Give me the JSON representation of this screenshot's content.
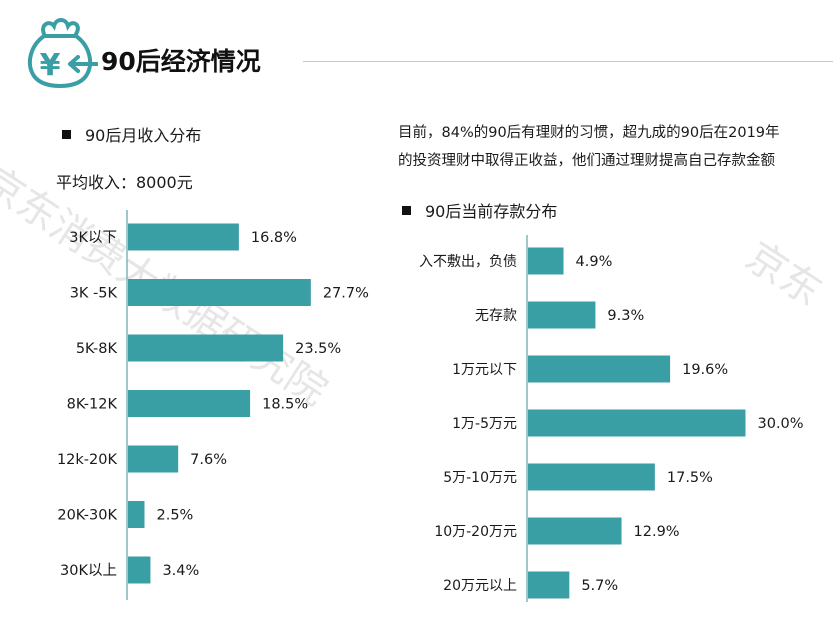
{
  "header": {
    "title": "90后经济情况",
    "logo_glyph": "¥",
    "icon": "money-bag-icon",
    "accent_color": "#3a9ea5"
  },
  "watermark": {
    "text": "京东消费大数据研究院",
    "fragment": "京东"
  },
  "summary": {
    "line1": "目前，84%的90后有理财的习惯，超九成的90后在2019年",
    "line2": "的投资理财中取得正收益，他们通过理财提高自己存款金额"
  },
  "chart_data": [
    {
      "type": "bar",
      "orientation": "horizontal",
      "title": "90后月收入分布",
      "subtitle": "平均收入：8000元",
      "categories": [
        "3K以下",
        "3K -5K",
        "5K-8K",
        "8K-12K",
        "12k-20K",
        "20K-30K",
        "30K以上"
      ],
      "values": [
        16.8,
        27.7,
        23.5,
        18.5,
        7.6,
        2.5,
        3.4
      ],
      "labels": [
        "16.8%",
        "27.7%",
        "23.5%",
        "18.5%",
        "7.6%",
        "2.5%",
        "3.4%"
      ],
      "unit": "%",
      "bar_color": "#3a9ea5",
      "grid": false
    },
    {
      "type": "bar",
      "orientation": "horizontal",
      "title": "90后当前存款分布",
      "categories": [
        "入不敷出，负债",
        "无存款",
        "1万元以下",
        "1万-5万元",
        "5万-10万元",
        "10万-20万元",
        "20万元以上"
      ],
      "values": [
        4.9,
        9.3,
        19.6,
        30.0,
        17.5,
        12.9,
        5.7
      ],
      "labels": [
        "4.9%",
        "9.3%",
        "19.6%",
        "30.0%",
        "17.5%",
        "12.9%",
        "5.7%"
      ],
      "unit": "%",
      "bar_color": "#3a9ea5",
      "grid": false
    }
  ]
}
